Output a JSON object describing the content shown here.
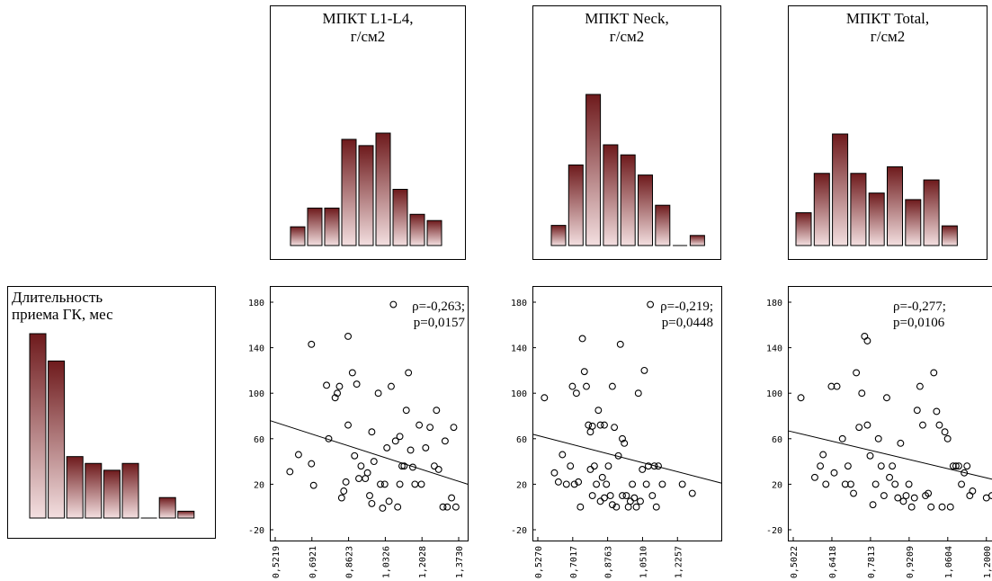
{
  "colors": {
    "bar_top": "#6e1a1c",
    "bar_bottom": "#f3dfe0",
    "frame": "#000000",
    "marker": "#000000"
  },
  "chart_data": [
    {
      "type": "bar",
      "id": "hist-l1l4",
      "title": [
        "МПКТ L1-L4,",
        "г/см2"
      ],
      "values": [
        3,
        6,
        6,
        17,
        16,
        18,
        9,
        5,
        4
      ]
    },
    {
      "type": "bar",
      "id": "hist-neck",
      "title": [
        "МПКТ Neck,",
        "г/см2"
      ],
      "values": [
        2,
        8,
        15,
        10,
        9,
        7,
        4,
        0,
        1
      ]
    },
    {
      "type": "bar",
      "id": "hist-total",
      "title": [
        "МПКТ Total,",
        "г/см2"
      ],
      "values": [
        5,
        11,
        17,
        11,
        8,
        12,
        7,
        10,
        3
      ]
    },
    {
      "type": "bar",
      "id": "hist-duration",
      "title": [
        "Длительность",
        "приема ГК, мес"
      ],
      "orientation": "vertical-bars",
      "values": [
        27,
        23,
        9,
        8,
        7,
        8,
        0,
        3,
        1
      ]
    },
    {
      "type": "scatter",
      "id": "scatter-l1l4",
      "annotation": [
        "ρ=-0,263;",
        "p=0,0157"
      ],
      "xlim": [
        0.5219,
        1.373
      ],
      "ylim": [
        -20,
        180
      ],
      "xticks": [
        "0,5219",
        "0,6921",
        "0,8623",
        "1,0326",
        "1,2028",
        "1,3730"
      ],
      "yticks": [
        "180",
        "140",
        "100",
        "60",
        "20",
        "-20"
      ],
      "fit": {
        "x": [
          0.5219,
          1.373
        ],
        "y": [
          76,
          20
        ]
      },
      "points": [
        [
          0.59,
          31
        ],
        [
          0.63,
          46
        ],
        [
          0.69,
          38
        ],
        [
          0.69,
          143
        ],
        [
          0.7,
          19
        ],
        [
          0.76,
          107
        ],
        [
          0.77,
          60
        ],
        [
          0.8,
          96
        ],
        [
          0.81,
          100
        ],
        [
          0.82,
          106
        ],
        [
          0.83,
          8
        ],
        [
          0.84,
          14
        ],
        [
          0.85,
          22
        ],
        [
          0.86,
          72
        ],
        [
          0.86,
          150
        ],
        [
          0.88,
          118
        ],
        [
          0.89,
          45
        ],
        [
          0.9,
          108
        ],
        [
          0.91,
          25
        ],
        [
          0.92,
          36
        ],
        [
          0.94,
          25
        ],
        [
          0.95,
          30
        ],
        [
          0.96,
          10
        ],
        [
          0.97,
          66
        ],
        [
          0.97,
          3
        ],
        [
          0.98,
          40
        ],
        [
          1,
          100
        ],
        [
          1.01,
          20
        ],
        [
          1.02,
          -1
        ],
        [
          1.03,
          20
        ],
        [
          1.04,
          52
        ],
        [
          1.05,
          5
        ],
        [
          1.06,
          106
        ],
        [
          1.07,
          178
        ],
        [
          1.08,
          58
        ],
        [
          1.09,
          0
        ],
        [
          1.1,
          62
        ],
        [
          1.1,
          20
        ],
        [
          1.11,
          36
        ],
        [
          1.12,
          36
        ],
        [
          1.13,
          85
        ],
        [
          1.14,
          118
        ],
        [
          1.15,
          50
        ],
        [
          1.16,
          35
        ],
        [
          1.17,
          20
        ],
        [
          1.19,
          72
        ],
        [
          1.2,
          20
        ],
        [
          1.22,
          52
        ],
        [
          1.24,
          70
        ],
        [
          1.26,
          36
        ],
        [
          1.27,
          85
        ],
        [
          1.28,
          33
        ],
        [
          1.3,
          0
        ],
        [
          1.31,
          58
        ],
        [
          1.32,
          0
        ],
        [
          1.34,
          8
        ],
        [
          1.35,
          70
        ],
        [
          1.36,
          0
        ]
      ]
    },
    {
      "type": "scatter",
      "id": "scatter-neck",
      "annotation": [
        "ρ=-0,219;",
        "p=0,0448"
      ],
      "xlim": [
        0.527,
        1.4
      ],
      "ylim": [
        -20,
        180
      ],
      "xticks": [
        "0,5270",
        "0,7017",
        "0,8763",
        "1,0510",
        "1,2257"
      ],
      "yticks": [
        "180",
        "140",
        "100",
        "60",
        "20",
        "-20"
      ],
      "fit": {
        "x": [
          0.527,
          1.4
        ],
        "y": [
          64,
          21
        ]
      },
      "points": [
        [
          0.56,
          96
        ],
        [
          0.61,
          30
        ],
        [
          0.63,
          22
        ],
        [
          0.65,
          46
        ],
        [
          0.67,
          20
        ],
        [
          0.69,
          36
        ],
        [
          0.7,
          106
        ],
        [
          0.71,
          20
        ],
        [
          0.72,
          100
        ],
        [
          0.73,
          22
        ],
        [
          0.74,
          0
        ],
        [
          0.75,
          148
        ],
        [
          0.76,
          119
        ],
        [
          0.77,
          106
        ],
        [
          0.78,
          72
        ],
        [
          0.79,
          33
        ],
        [
          0.79,
          66
        ],
        [
          0.8,
          10
        ],
        [
          0.8,
          71
        ],
        [
          0.81,
          36
        ],
        [
          0.82,
          20
        ],
        [
          0.83,
          85
        ],
        [
          0.84,
          72
        ],
        [
          0.84,
          5
        ],
        [
          0.85,
          26
        ],
        [
          0.86,
          72
        ],
        [
          0.86,
          8
        ],
        [
          0.87,
          20
        ],
        [
          0.88,
          36
        ],
        [
          0.89,
          10
        ],
        [
          0.9,
          106
        ],
        [
          0.9,
          2
        ],
        [
          0.91,
          70
        ],
        [
          0.92,
          0
        ],
        [
          0.93,
          45
        ],
        [
          0.94,
          143
        ],
        [
          0.95,
          60
        ],
        [
          0.95,
          10
        ],
        [
          0.96,
          56
        ],
        [
          0.97,
          10
        ],
        [
          0.98,
          0
        ],
        [
          0.99,
          5
        ],
        [
          1,
          20
        ],
        [
          1.01,
          8
        ],
        [
          1.02,
          0
        ],
        [
          1.03,
          100
        ],
        [
          1.04,
          5
        ],
        [
          1.05,
          33
        ],
        [
          1.06,
          120
        ],
        [
          1.07,
          20
        ],
        [
          1.08,
          36
        ],
        [
          1.09,
          178
        ],
        [
          1.1,
          10
        ],
        [
          1.11,
          36
        ],
        [
          1.12,
          0
        ],
        [
          1.13,
          36
        ],
        [
          1.15,
          20
        ],
        [
          1.25,
          20
        ],
        [
          1.3,
          12
        ]
      ]
    },
    {
      "type": "scatter",
      "id": "scatter-total",
      "annotation": [
        "ρ=-0,277;",
        "p=0,0106"
      ],
      "xlim": [
        0.5022,
        1.23
      ],
      "ylim": [
        -20,
        180
      ],
      "xticks": [
        "0,5022",
        "0,6418",
        "0,7813",
        "0,9209",
        "1,0604",
        "1,2000"
      ],
      "yticks": [
        "180",
        "140",
        "100",
        "60",
        "20",
        "-20"
      ],
      "fit": {
        "x": [
          0.5022,
          1.23
        ],
        "y": [
          67,
          22
        ]
      },
      "points": [
        [
          0.53,
          96
        ],
        [
          0.58,
          26
        ],
        [
          0.6,
          36
        ],
        [
          0.61,
          46
        ],
        [
          0.62,
          20
        ],
        [
          0.64,
          106
        ],
        [
          0.65,
          30
        ],
        [
          0.66,
          106
        ],
        [
          0.68,
          60
        ],
        [
          0.69,
          20
        ],
        [
          0.7,
          36
        ],
        [
          0.71,
          20
        ],
        [
          0.72,
          12
        ],
        [
          0.73,
          118
        ],
        [
          0.74,
          70
        ],
        [
          0.75,
          100
        ],
        [
          0.76,
          150
        ],
        [
          0.77,
          72
        ],
        [
          0.77,
          146
        ],
        [
          0.78,
          45
        ],
        [
          0.79,
          2
        ],
        [
          0.8,
          20
        ],
        [
          0.81,
          60
        ],
        [
          0.82,
          36
        ],
        [
          0.83,
          10
        ],
        [
          0.84,
          96
        ],
        [
          0.85,
          26
        ],
        [
          0.86,
          36
        ],
        [
          0.87,
          20
        ],
        [
          0.88,
          8
        ],
        [
          0.89,
          56
        ],
        [
          0.9,
          5
        ],
        [
          0.91,
          10
        ],
        [
          0.92,
          20
        ],
        [
          0.93,
          0
        ],
        [
          0.94,
          8
        ],
        [
          0.95,
          85
        ],
        [
          0.96,
          106
        ],
        [
          0.97,
          72
        ],
        [
          0.98,
          10
        ],
        [
          0.99,
          12
        ],
        [
          1,
          0
        ],
        [
          1.01,
          118
        ],
        [
          1.02,
          84
        ],
        [
          1.03,
          72
        ],
        [
          1.04,
          0
        ],
        [
          1.05,
          66
        ],
        [
          1.06,
          60
        ],
        [
          1.07,
          0
        ],
        [
          1.08,
          36
        ],
        [
          1.09,
          36
        ],
        [
          1.1,
          36
        ],
        [
          1.11,
          20
        ],
        [
          1.12,
          30
        ],
        [
          1.13,
          36
        ],
        [
          1.14,
          10
        ],
        [
          1.15,
          14
        ],
        [
          1.2,
          8
        ],
        [
          1.22,
          10
        ]
      ]
    }
  ]
}
